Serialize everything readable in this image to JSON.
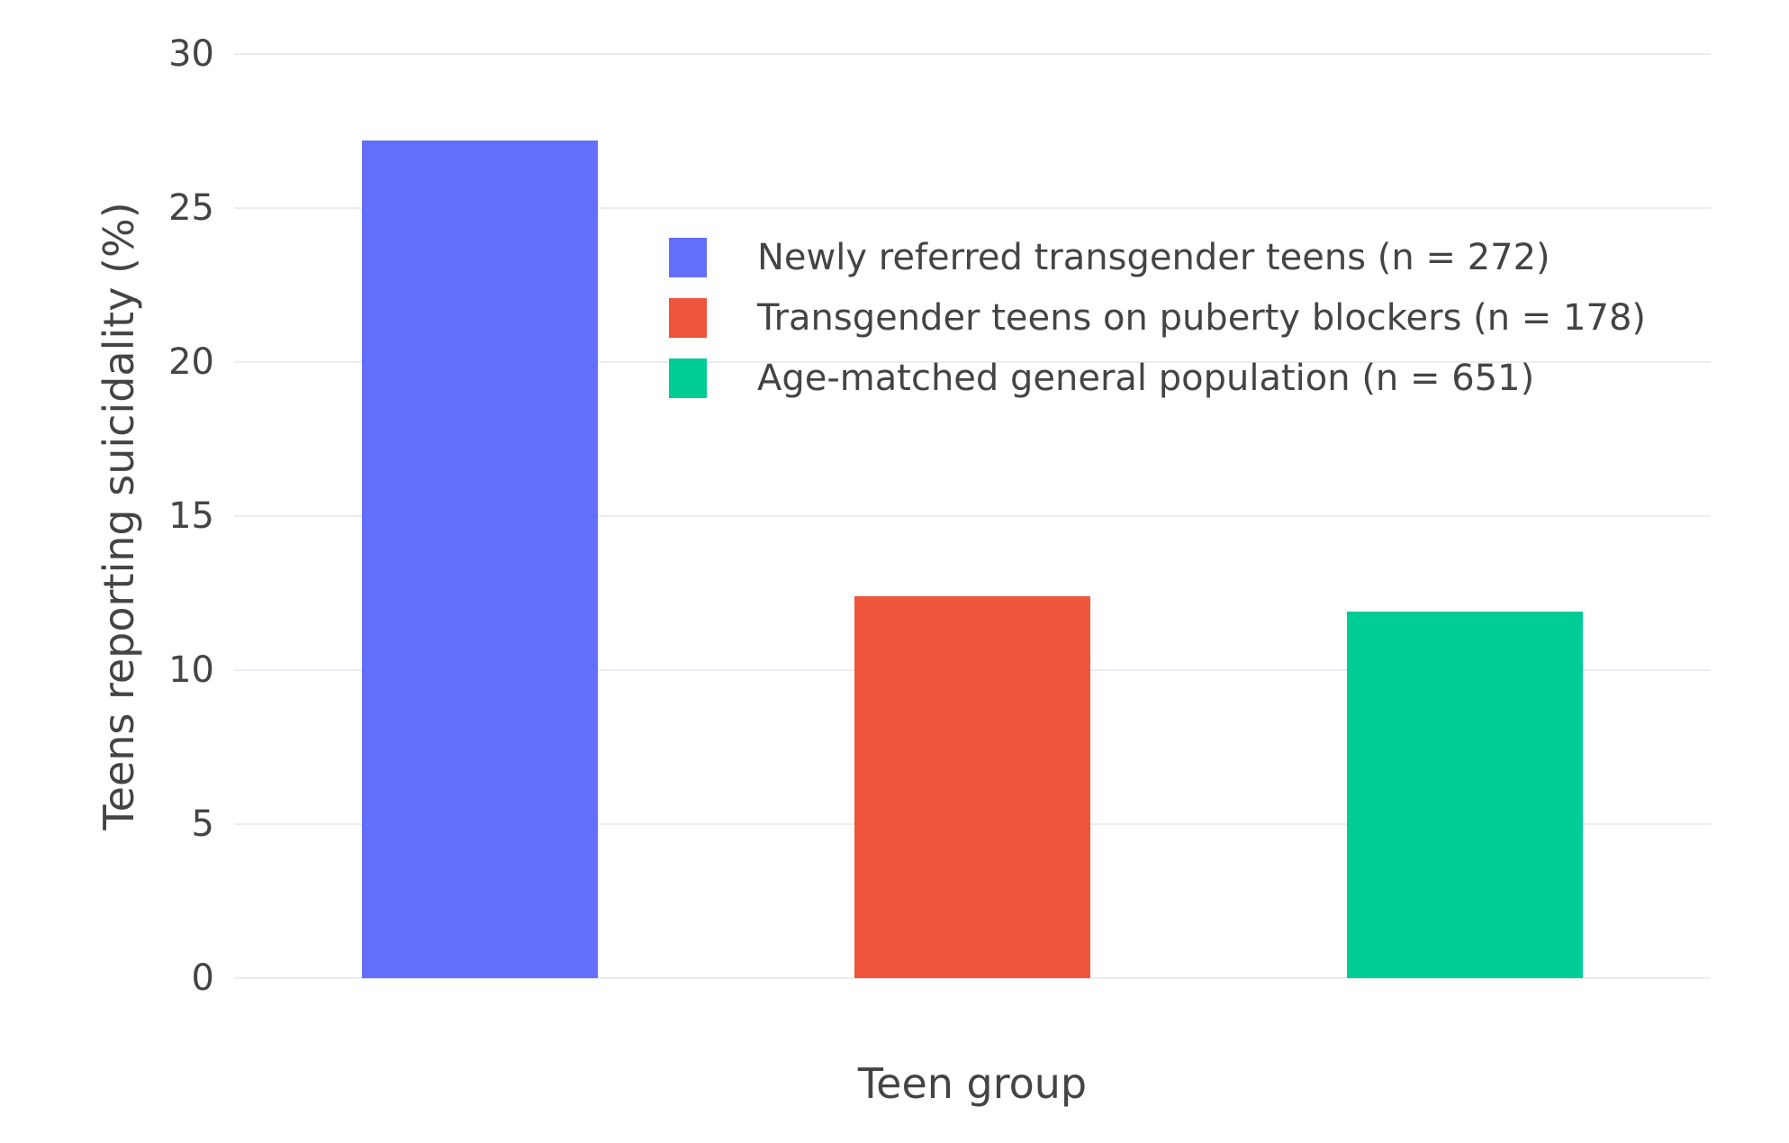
{
  "colors": {
    "background": "#FFFFFF",
    "grid": "#E9EDF4",
    "text": "#444444"
  },
  "chart_data": {
    "type": "bar",
    "title": "",
    "xlabel": "Teen group",
    "ylabel": "Teens reporting suicidality (%)",
    "ylim": [
      0,
      30
    ],
    "yticks": [
      0,
      5,
      10,
      15,
      20,
      25,
      30
    ],
    "grid": true,
    "legend_position": "inside-top-left",
    "categories": [
      "Newly referred transgender teens (n = 272)",
      "Transgender teens on puberty blockers (n = 178)",
      "Age-matched general population (n = 651)"
    ],
    "series": [
      {
        "name": "Newly referred transgender teens (n = 272)",
        "values": [
          27.2
        ],
        "color": "#636EFA"
      },
      {
        "name": "Transgender teens on puberty blockers (n = 178)",
        "values": [
          12.4
        ],
        "color": "#EF553B"
      },
      {
        "name": "Age-matched general population (n = 651)",
        "values": [
          11.9
        ],
        "color": "#00CC96"
      }
    ],
    "values": [
      27.2,
      12.4,
      11.9
    ],
    "bar_colors": [
      "#636EFA",
      "#EF553B",
      "#00CC96"
    ]
  },
  "legend": {
    "entries": [
      {
        "label": "Newly referred transgender teens (n = 272)",
        "color": "#636EFA"
      },
      {
        "label": "Transgender teens on puberty blockers (n = 178)",
        "color": "#EF553B"
      },
      {
        "label": "Age-matched general population (n = 651)",
        "color": "#00CC96"
      }
    ]
  }
}
